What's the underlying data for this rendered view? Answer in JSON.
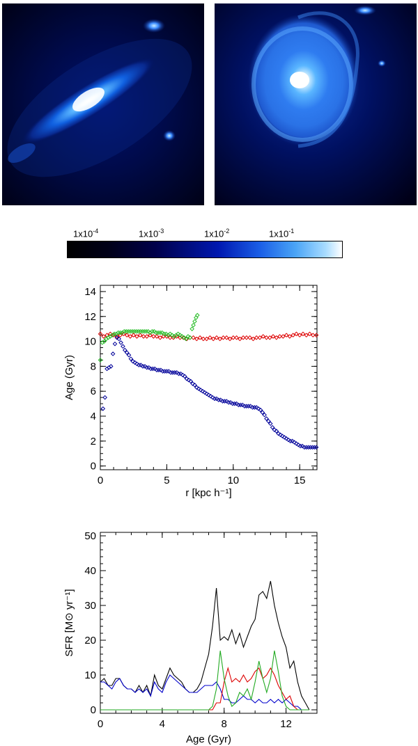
{
  "colorbar": {
    "labels": [
      "1x10-4",
      "1x10-3",
      "1x10-2",
      "1x10-1"
    ],
    "label_parts": [
      {
        "base": "1x10",
        "exp": "-4"
      },
      {
        "base": "1x10",
        "exp": "-3"
      },
      {
        "base": "1x10",
        "exp": "-2"
      },
      {
        "base": "1x10",
        "exp": "-1"
      }
    ]
  },
  "chart_data": [
    {
      "type": "scatter",
      "xlabel": "r [kpc h⁻¹]",
      "ylabel": "Age (Gyr)",
      "xlim": [
        0,
        16.3
      ],
      "ylim": [
        -0.3,
        14.5
      ],
      "x_ticks": [
        0,
        5,
        10,
        15
      ],
      "y_ticks": [
        0,
        2,
        4,
        6,
        8,
        10,
        12,
        14
      ],
      "grid": false,
      "series": [
        {
          "color": "#dd0000",
          "x": [
            0.0,
            0.25,
            0.5,
            0.75,
            1.0,
            1.25,
            1.5,
            1.75,
            2.0,
            2.25,
            2.5,
            2.75,
            3.0,
            3.25,
            3.5,
            3.75,
            4.0,
            4.25,
            4.5,
            4.75,
            5.0,
            5.25,
            5.5,
            5.75,
            6.0,
            6.25,
            6.5,
            6.75,
            7.0,
            7.25,
            7.5,
            7.75,
            8.0,
            8.25,
            8.5,
            8.75,
            9.0,
            9.25,
            9.5,
            9.75,
            10.0,
            10.25,
            10.5,
            10.75,
            11.0,
            11.25,
            11.5,
            11.75,
            12.0,
            12.25,
            12.5,
            12.75,
            13.0,
            13.25,
            13.5,
            13.75,
            14.0,
            14.25,
            14.5,
            14.75,
            15.0,
            15.25,
            15.5,
            15.75,
            16.0,
            16.25
          ],
          "y": [
            10.6,
            10.4,
            10.5,
            10.6,
            10.5,
            10.4,
            10.5,
            10.6,
            10.5,
            10.4,
            10.5,
            10.4,
            10.5,
            10.4,
            10.4,
            10.5,
            10.4,
            10.4,
            10.3,
            10.4,
            10.4,
            10.3,
            10.3,
            10.4,
            10.3,
            10.3,
            10.2,
            10.3,
            10.3,
            10.2,
            10.3,
            10.2,
            10.2,
            10.3,
            10.2,
            10.3,
            10.2,
            10.3,
            10.3,
            10.2,
            10.3,
            10.3,
            10.2,
            10.3,
            10.3,
            10.3,
            10.2,
            10.3,
            10.3,
            10.4,
            10.3,
            10.3,
            10.4,
            10.3,
            10.4,
            10.4,
            10.5,
            10.4,
            10.5,
            10.6,
            10.5,
            10.6,
            10.5,
            10.6,
            10.5,
            10.5
          ]
        },
        {
          "color": "#22bb22",
          "x": [
            0.0,
            0.15,
            0.3,
            0.45,
            0.6,
            0.75,
            0.9,
            1.05,
            1.2,
            1.35,
            1.5,
            1.65,
            1.8,
            1.95,
            2.1,
            2.25,
            2.4,
            2.55,
            2.7,
            2.85,
            3.0,
            3.15,
            3.3,
            3.45,
            3.6,
            3.75,
            3.9,
            4.05,
            4.2,
            4.35,
            4.5,
            4.65,
            4.8,
            4.95,
            5.1,
            5.25,
            5.4,
            5.55,
            5.7,
            5.85,
            6.0,
            6.15,
            6.3,
            6.45,
            6.6,
            6.75,
            6.9,
            7.0,
            7.1,
            7.2,
            7.3
          ],
          "y": [
            8.5,
            9.9,
            10.0,
            10.2,
            10.3,
            10.4,
            10.5,
            10.6,
            10.6,
            10.7,
            10.7,
            10.7,
            10.8,
            10.8,
            10.8,
            10.8,
            10.8,
            10.8,
            10.8,
            10.8,
            10.8,
            10.8,
            10.8,
            10.8,
            10.8,
            10.7,
            10.8,
            10.8,
            10.7,
            10.7,
            10.7,
            10.7,
            10.6,
            10.6,
            10.5,
            10.6,
            10.5,
            10.4,
            10.5,
            10.6,
            10.5,
            10.4,
            10.3,
            10.2,
            10.4,
            10.3,
            11.0,
            11.3,
            11.6,
            11.9,
            12.1
          ]
        },
        {
          "color": "#000099",
          "x": [
            0.2,
            0.35,
            0.5,
            0.65,
            0.8,
            0.95,
            1.1,
            1.25,
            1.4,
            1.55,
            1.7,
            1.85,
            2.0,
            2.15,
            2.3,
            2.45,
            2.6,
            2.75,
            2.9,
            3.05,
            3.2,
            3.35,
            3.5,
            3.65,
            3.8,
            3.95,
            4.1,
            4.25,
            4.4,
            4.55,
            4.7,
            4.85,
            5.0,
            5.15,
            5.3,
            5.45,
            5.6,
            5.75,
            5.9,
            6.05,
            6.2,
            6.35,
            6.5,
            6.65,
            6.8,
            6.95,
            7.1,
            7.25,
            7.4,
            7.55,
            7.7,
            7.85,
            8.0,
            8.15,
            8.3,
            8.45,
            8.6,
            8.75,
            8.9,
            9.05,
            9.2,
            9.35,
            9.5,
            9.65,
            9.8,
            9.95,
            10.1,
            10.25,
            10.4,
            10.55,
            10.7,
            10.85,
            11.0,
            11.15,
            11.3,
            11.45,
            11.6,
            11.75,
            11.9,
            12.05,
            12.2,
            12.35,
            12.5,
            12.65,
            12.8,
            12.95,
            13.1,
            13.25,
            13.4,
            13.55,
            13.7,
            13.85,
            14.0,
            14.15,
            14.3,
            14.45,
            14.6,
            14.75,
            14.9,
            15.05,
            15.2,
            15.35,
            15.5,
            15.65,
            15.8,
            15.95,
            16.1,
            16.25
          ],
          "y": [
            4.6,
            5.5,
            7.8,
            7.9,
            8.0,
            9.0,
            9.8,
            10.3,
            10.2,
            9.9,
            9.6,
            9.3,
            9.1,
            8.9,
            8.6,
            8.4,
            8.3,
            8.2,
            8.1,
            8.1,
            8.0,
            8.0,
            7.9,
            7.9,
            7.8,
            7.8,
            7.8,
            7.7,
            7.7,
            7.7,
            7.6,
            7.6,
            7.6,
            7.6,
            7.5,
            7.5,
            7.5,
            7.5,
            7.4,
            7.4,
            7.3,
            7.2,
            7.0,
            6.9,
            6.8,
            6.6,
            6.5,
            6.3,
            6.2,
            6.1,
            6.0,
            5.9,
            5.8,
            5.7,
            5.6,
            5.5,
            5.4,
            5.4,
            5.3,
            5.3,
            5.2,
            5.2,
            5.2,
            5.1,
            5.1,
            5.0,
            5.0,
            5.0,
            4.9,
            4.9,
            4.9,
            4.8,
            4.8,
            4.8,
            4.8,
            4.7,
            4.7,
            4.7,
            4.6,
            4.5,
            4.3,
            4.1,
            3.8,
            3.6,
            3.4,
            3.1,
            2.9,
            2.8,
            2.6,
            2.5,
            2.4,
            2.3,
            2.2,
            2.1,
            2.0,
            2.0,
            1.9,
            1.8,
            1.7,
            1.6,
            1.6,
            1.5,
            1.5,
            1.5,
            1.5,
            1.5,
            1.5,
            1.5
          ]
        }
      ]
    },
    {
      "type": "line",
      "xlabel": "Age (Gyr)",
      "ylabel": "SFR [M⊙ yr⁻¹]",
      "xlim": [
        0,
        14
      ],
      "ylim": [
        -1,
        51
      ],
      "x_ticks": [
        0,
        4,
        8,
        12
      ],
      "y_ticks": [
        0,
        10,
        20,
        30,
        40,
        50
      ],
      "grid": false,
      "x": [
        0,
        0.25,
        0.5,
        0.75,
        1,
        1.25,
        1.5,
        1.75,
        2,
        2.25,
        2.5,
        2.75,
        3,
        3.25,
        3.5,
        3.75,
        4,
        4.25,
        4.5,
        4.75,
        5,
        5.25,
        5.5,
        5.75,
        6,
        6.25,
        6.5,
        6.75,
        7,
        7.25,
        7.5,
        7.75,
        8,
        8.25,
        8.5,
        8.75,
        9,
        9.25,
        9.5,
        9.75,
        10,
        10.25,
        10.5,
        10.75,
        11,
        11.25,
        11.5,
        11.75,
        12,
        12.25,
        12.5,
        12.75,
        13,
        13.25,
        13.5
      ],
      "series": [
        {
          "color": "#000000",
          "values": [
            8,
            9,
            7,
            7,
            9,
            9,
            7,
            6,
            6,
            5,
            7,
            5,
            7,
            4,
            10,
            7,
            6,
            9,
            12,
            10,
            9,
            8,
            6,
            5,
            5,
            6,
            8,
            12,
            16,
            24,
            35,
            20,
            21,
            20,
            23,
            19,
            22,
            18,
            21,
            24,
            26,
            33,
            34,
            32,
            37,
            30,
            25,
            21,
            18,
            12,
            14,
            8,
            4,
            2,
            0
          ]
        },
        {
          "color": "#0000cc",
          "values": [
            8,
            8,
            7,
            6,
            8,
            9,
            7,
            6,
            6,
            5,
            6,
            5,
            6,
            4,
            8,
            6,
            5,
            8,
            10,
            9,
            8,
            7,
            6,
            5,
            5,
            5,
            6,
            7,
            7,
            7,
            8,
            6,
            3,
            3,
            2,
            2,
            3,
            4,
            3,
            3,
            2,
            3,
            2,
            2,
            3,
            2,
            3,
            2,
            3,
            2,
            1,
            1,
            0,
            0,
            0
          ]
        },
        {
          "color": "#dd0000",
          "values": [
            0,
            0,
            0,
            0,
            0,
            0,
            0,
            0,
            0,
            0,
            0,
            0,
            0,
            0,
            0,
            0,
            0,
            0,
            0,
            0,
            0,
            0,
            0,
            0,
            0,
            0,
            0,
            0,
            0,
            0,
            2,
            2,
            8,
            12,
            8,
            9,
            8,
            10,
            8,
            9,
            11,
            12,
            9,
            10,
            12,
            10,
            7,
            5,
            3,
            4,
            1,
            0,
            0,
            0,
            0
          ]
        },
        {
          "color": "#22aa22",
          "values": [
            0,
            0,
            0,
            0,
            0,
            0,
            0,
            0,
            0,
            0,
            0,
            0,
            0,
            0,
            0,
            0,
            0,
            0,
            0,
            0,
            0,
            0,
            0,
            0,
            0,
            0,
            0,
            0,
            0,
            1,
            6,
            17,
            9,
            4,
            1,
            2,
            5,
            4,
            6,
            3,
            8,
            14,
            9,
            5,
            9,
            17,
            11,
            4,
            1,
            0,
            0,
            0,
            0,
            0,
            0
          ]
        }
      ]
    }
  ]
}
